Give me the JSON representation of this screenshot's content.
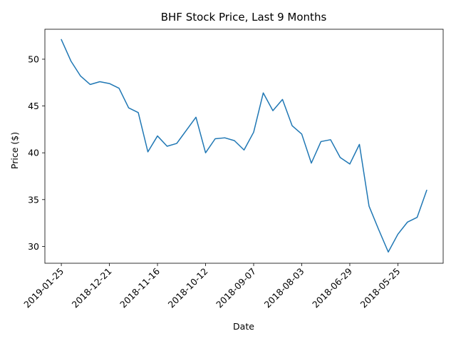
{
  "chart_data": {
    "type": "line",
    "title": "BHF Stock Price, Last 9 Months",
    "xlabel": "Date",
    "ylabel": "Price ($)",
    "x_order": "reverse-chronological, newest at left",
    "x_tick_labels": [
      "2019-01-25",
      "2018-12-21",
      "2018-11-16",
      "2018-10-12",
      "2018-09-07",
      "2018-08-03",
      "2018-06-29",
      "2018-05-25"
    ],
    "y_ticks": [
      30,
      35,
      40,
      45,
      50
    ],
    "ylim": [
      28.2,
      53.2
    ],
    "grid": false,
    "legend": "none",
    "line_color": "#1f77b4",
    "series": [
      {
        "x": [
          "2019-01-25",
          "2019-01-18",
          "2019-01-11",
          "2019-01-04",
          "2018-12-28",
          "2018-12-21",
          "2018-12-14",
          "2018-12-07",
          "2018-11-30",
          "2018-11-23",
          "2018-11-16",
          "2018-11-09",
          "2018-11-02",
          "2018-10-26",
          "2018-10-19",
          "2018-10-12",
          "2018-10-05",
          "2018-09-28",
          "2018-09-21",
          "2018-09-14",
          "2018-09-07",
          "2018-08-31",
          "2018-08-24",
          "2018-08-17",
          "2018-08-10",
          "2018-08-03",
          "2018-07-27",
          "2018-07-20",
          "2018-07-13",
          "2018-07-06",
          "2018-06-29",
          "2018-06-22",
          "2018-06-15",
          "2018-06-08",
          "2018-06-01",
          "2018-05-25",
          "2018-05-18",
          "2018-05-11",
          "2018-05-04"
        ],
        "values": [
          52.1,
          49.8,
          48.2,
          47.3,
          47.6,
          47.4,
          46.9,
          44.8,
          44.3,
          40.1,
          41.8,
          40.7,
          41.0,
          42.4,
          43.8,
          40.0,
          41.5,
          41.6,
          41.3,
          40.3,
          42.2,
          46.4,
          44.5,
          45.7,
          42.9,
          42.0,
          38.9,
          41.2,
          41.4,
          39.5,
          38.8,
          40.9,
          34.3,
          31.8,
          29.4,
          31.3,
          32.6,
          33.1,
          36.0
        ]
      }
    ]
  }
}
